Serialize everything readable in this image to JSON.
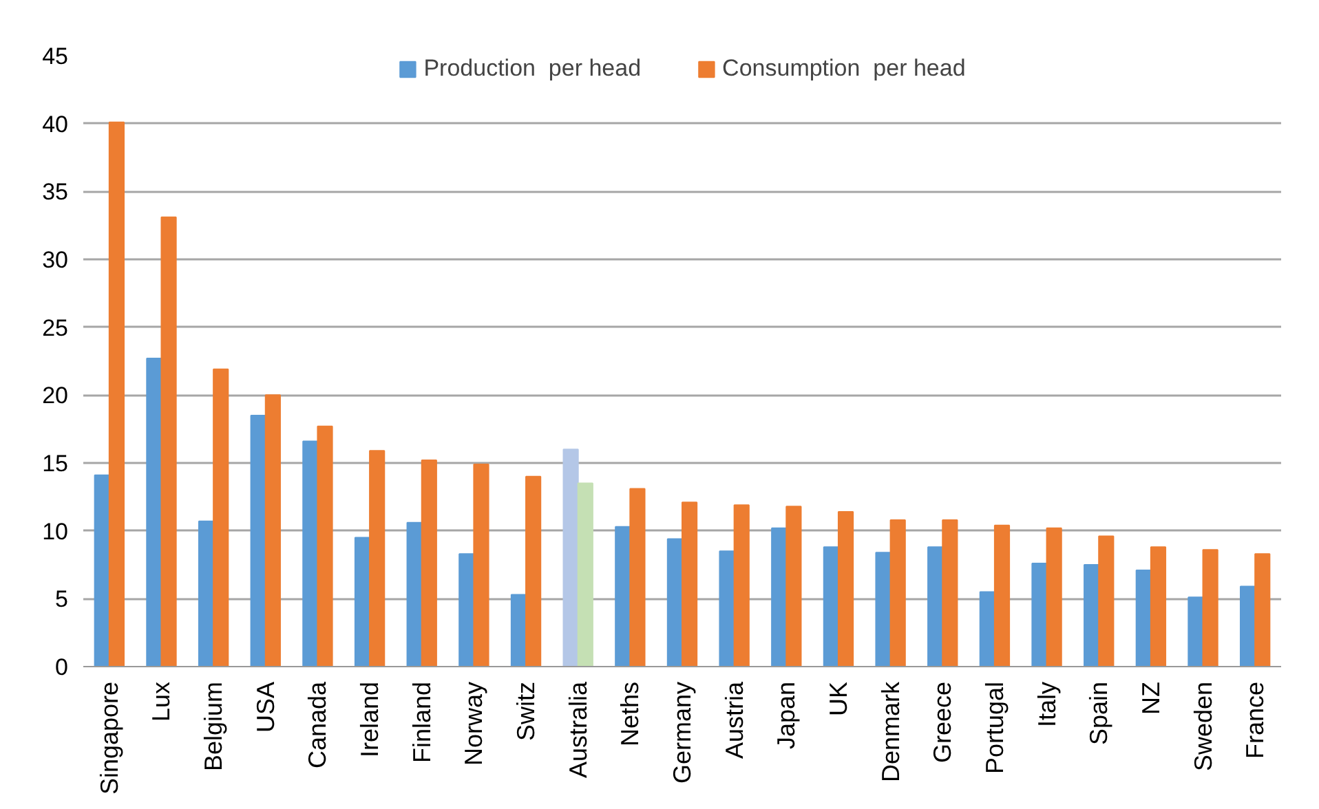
{
  "chart_data": {
    "type": "bar",
    "categories": [
      "Singapore",
      "Lux",
      "Belgium",
      "USA",
      "Canada",
      "Ireland",
      "Finland",
      "Norway",
      "Switz",
      "Australia",
      "Neths",
      "Germany",
      "Austria",
      "Japan",
      "UK",
      "Denmark",
      "Greece",
      "Portugal",
      "Italy",
      "Spain",
      "NZ",
      "Sweden",
      "France"
    ],
    "series": [
      {
        "name": "Production  per head",
        "color": "#5b9bd5",
        "colors": [
          "#5b9bd5",
          "#5b9bd5",
          "#5b9bd5",
          "#5b9bd5",
          "#5b9bd5",
          "#5b9bd5",
          "#5b9bd5",
          "#5b9bd5",
          "#5b9bd5",
          "#b4c7e7",
          "#5b9bd5",
          "#5b9bd5",
          "#5b9bd5",
          "#5b9bd5",
          "#5b9bd5",
          "#5b9bd5",
          "#5b9bd5",
          "#5b9bd5",
          "#5b9bd5",
          "#5b9bd5",
          "#5b9bd5",
          "#5b9bd5",
          "#5b9bd5"
        ],
        "values": [
          14.1,
          22.7,
          10.7,
          18.5,
          16.6,
          9.5,
          10.6,
          8.3,
          5.3,
          16.0,
          10.3,
          9.4,
          8.5,
          10.2,
          8.8,
          8.4,
          8.8,
          5.5,
          7.6,
          7.5,
          7.1,
          5.1,
          5.9
        ]
      },
      {
        "name": "Consumption  per head",
        "color": "#ed7d31",
        "colors": [
          "#ed7d31",
          "#ed7d31",
          "#ed7d31",
          "#ed7d31",
          "#ed7d31",
          "#ed7d31",
          "#ed7d31",
          "#ed7d31",
          "#ed7d31",
          "#c5e0b4",
          "#ed7d31",
          "#ed7d31",
          "#ed7d31",
          "#ed7d31",
          "#ed7d31",
          "#ed7d31",
          "#ed7d31",
          "#ed7d31",
          "#ed7d31",
          "#ed7d31",
          "#ed7d31",
          "#ed7d31",
          "#ed7d31"
        ],
        "values": [
          40.1,
          33.1,
          21.9,
          20.0,
          17.7,
          15.9,
          15.2,
          14.9,
          14.0,
          13.5,
          13.1,
          12.1,
          11.9,
          11.8,
          11.4,
          10.8,
          10.8,
          10.4,
          10.2,
          9.6,
          8.8,
          8.6,
          8.3
        ]
      }
    ],
    "ylim": [
      0,
      45
    ],
    "yticks": [
      0,
      5,
      10,
      15,
      20,
      25,
      30,
      35,
      40,
      45
    ],
    "grid": "y",
    "legend": "top"
  }
}
